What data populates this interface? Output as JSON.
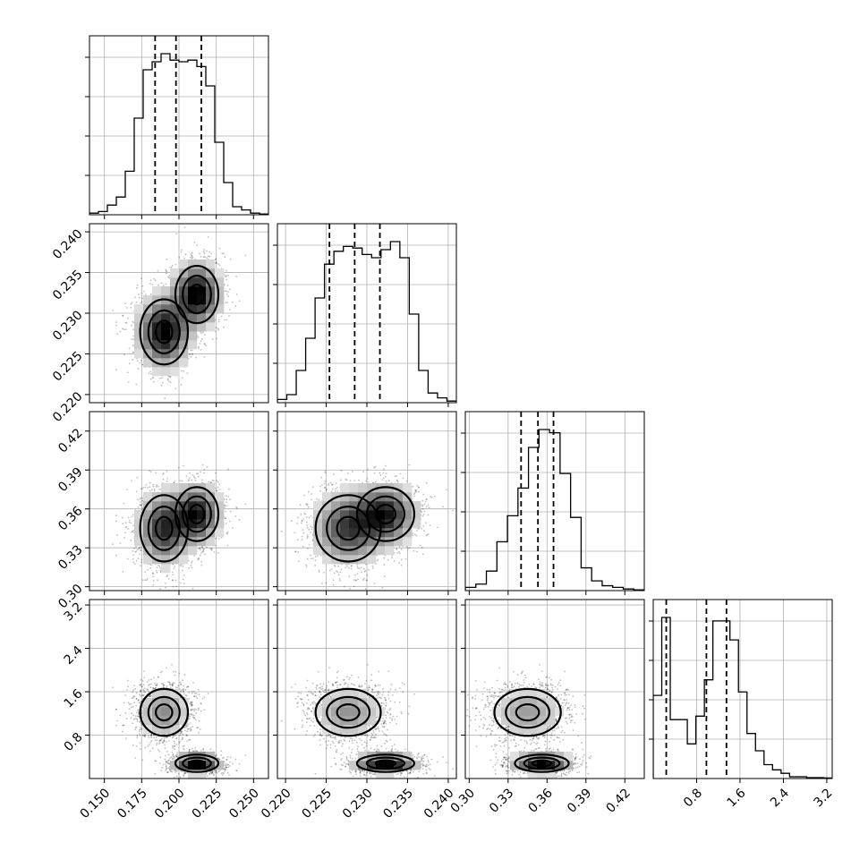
{
  "chart_data": {
    "type": "corner",
    "parameters": [
      {
        "range": [
          0.14,
          0.26
        ],
        "ticks": [
          0.15,
          0.175,
          0.2,
          0.225,
          0.25
        ],
        "tick_labels": [
          "0.150",
          "0.175",
          "0.200",
          "0.225",
          "0.250"
        ],
        "quantiles": [
          0.184,
          0.198,
          0.215
        ],
        "hist": [
          0.01,
          0.02,
          0.06,
          0.11,
          0.27,
          0.6,
          0.9,
          0.95,
          1.0,
          0.96,
          0.95,
          0.96,
          0.92,
          0.8,
          0.45,
          0.2,
          0.05,
          0.03,
          0.01,
          0.005
        ]
      },
      {
        "range": [
          0.219,
          0.241
        ],
        "ticks": [
          0.22,
          0.225,
          0.23,
          0.235,
          0.24
        ],
        "tick_labels": [
          "0.220",
          "0.225",
          "0.230",
          "0.235",
          "0.240"
        ],
        "quantiles": [
          0.2254,
          0.2285,
          0.2316
        ],
        "hist": [
          0.02,
          0.05,
          0.2,
          0.4,
          0.65,
          0.86,
          0.94,
          0.97,
          0.96,
          0.92,
          0.9,
          0.95,
          1.0,
          0.9,
          0.55,
          0.2,
          0.06,
          0.03,
          0.01
        ]
      },
      {
        "range": [
          0.297,
          0.435
        ],
        "ticks": [
          0.3,
          0.33,
          0.36,
          0.39,
          0.42
        ],
        "tick_labels": [
          "0.30",
          "0.33",
          "0.36",
          "0.39",
          "0.42"
        ],
        "quantiles": [
          0.34,
          0.353,
          0.365
        ],
        "hist": [
          0.02,
          0.04,
          0.12,
          0.3,
          0.46,
          0.63,
          0.88,
          0.99,
          0.97,
          0.72,
          0.45,
          0.14,
          0.06,
          0.03,
          0.02,
          0.01,
          0.005
        ]
      },
      {
        "range": [
          0.0,
          3.3
        ],
        "ticks": [
          0.8,
          1.6,
          2.4,
          3.2
        ],
        "tick_labels": [
          "0.8",
          "1.6",
          "2.4",
          "3.2"
        ],
        "quantiles": [
          0.24,
          0.98,
          1.35
        ],
        "hist": [
          0.48,
          0.93,
          0.34,
          0.34,
          0.2,
          0.36,
          0.57,
          0.91,
          0.91,
          0.8,
          0.5,
          0.26,
          0.16,
          0.08,
          0.05,
          0.03,
          0.01,
          0.01,
          0.005,
          0.005,
          0.003
        ]
      }
    ],
    "posterior_modes": [
      {
        "weight": 0.55,
        "mean": [
          0.19,
          0.2277,
          0.345,
          1.22
        ],
        "sd": [
          0.01,
          0.0025,
          0.016,
          0.27
        ]
      },
      {
        "weight": 0.45,
        "mean": [
          0.212,
          0.2323,
          0.356,
          0.28
        ],
        "sd": [
          0.009,
          0.0022,
          0.013,
          0.1
        ]
      }
    ],
    "grid": true
  }
}
